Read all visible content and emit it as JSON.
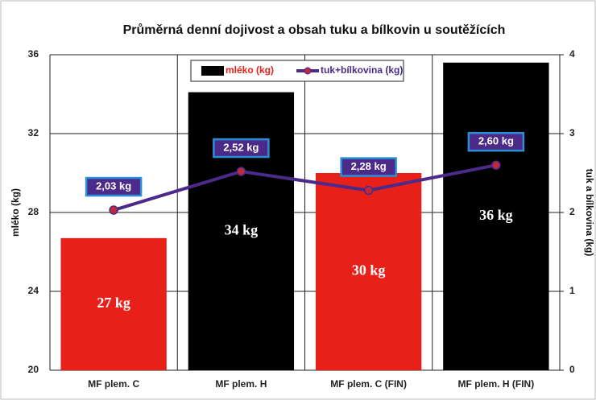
{
  "chart_data": {
    "type": "combo",
    "title": "Průměrná denní dojivost a obsah tuku a bílkovin u soutěžících",
    "categories": [
      "MF plem. C",
      "MF plem. H",
      "MF plem. C (FIN)",
      "MF plem. H (FIN)"
    ],
    "series": [
      {
        "name": "mléko (kg)",
        "type": "bar",
        "color": "#000000",
        "colors": [
          "#e8201a",
          "#000000",
          "#e8201a",
          "#000000"
        ],
        "values": [
          26.7,
          34.1,
          30.0,
          35.6
        ],
        "value_labels": [
          "27 kg",
          "34 kg",
          "30 kg",
          "36 kg"
        ]
      },
      {
        "name": "tuk+bílkovina (kg)",
        "type": "line",
        "axis": "y2",
        "color": "#4b2a8a",
        "values": [
          2.03,
          2.52,
          2.28,
          2.6
        ],
        "value_labels": [
          "2,03 kg",
          "2,52 kg",
          "2,28 kg",
          "2,60 kg"
        ]
      }
    ],
    "ylabel": "mléko (kg)",
    "y2label": "tuk a bílkovina (kg)",
    "ylim": [
      20,
      36
    ],
    "yticks": [
      20,
      24,
      28,
      32,
      36
    ],
    "y2lim": [
      0,
      4
    ],
    "y2ticks": [
      0,
      1,
      2,
      3,
      4
    ],
    "grid": true,
    "legend": "top"
  }
}
